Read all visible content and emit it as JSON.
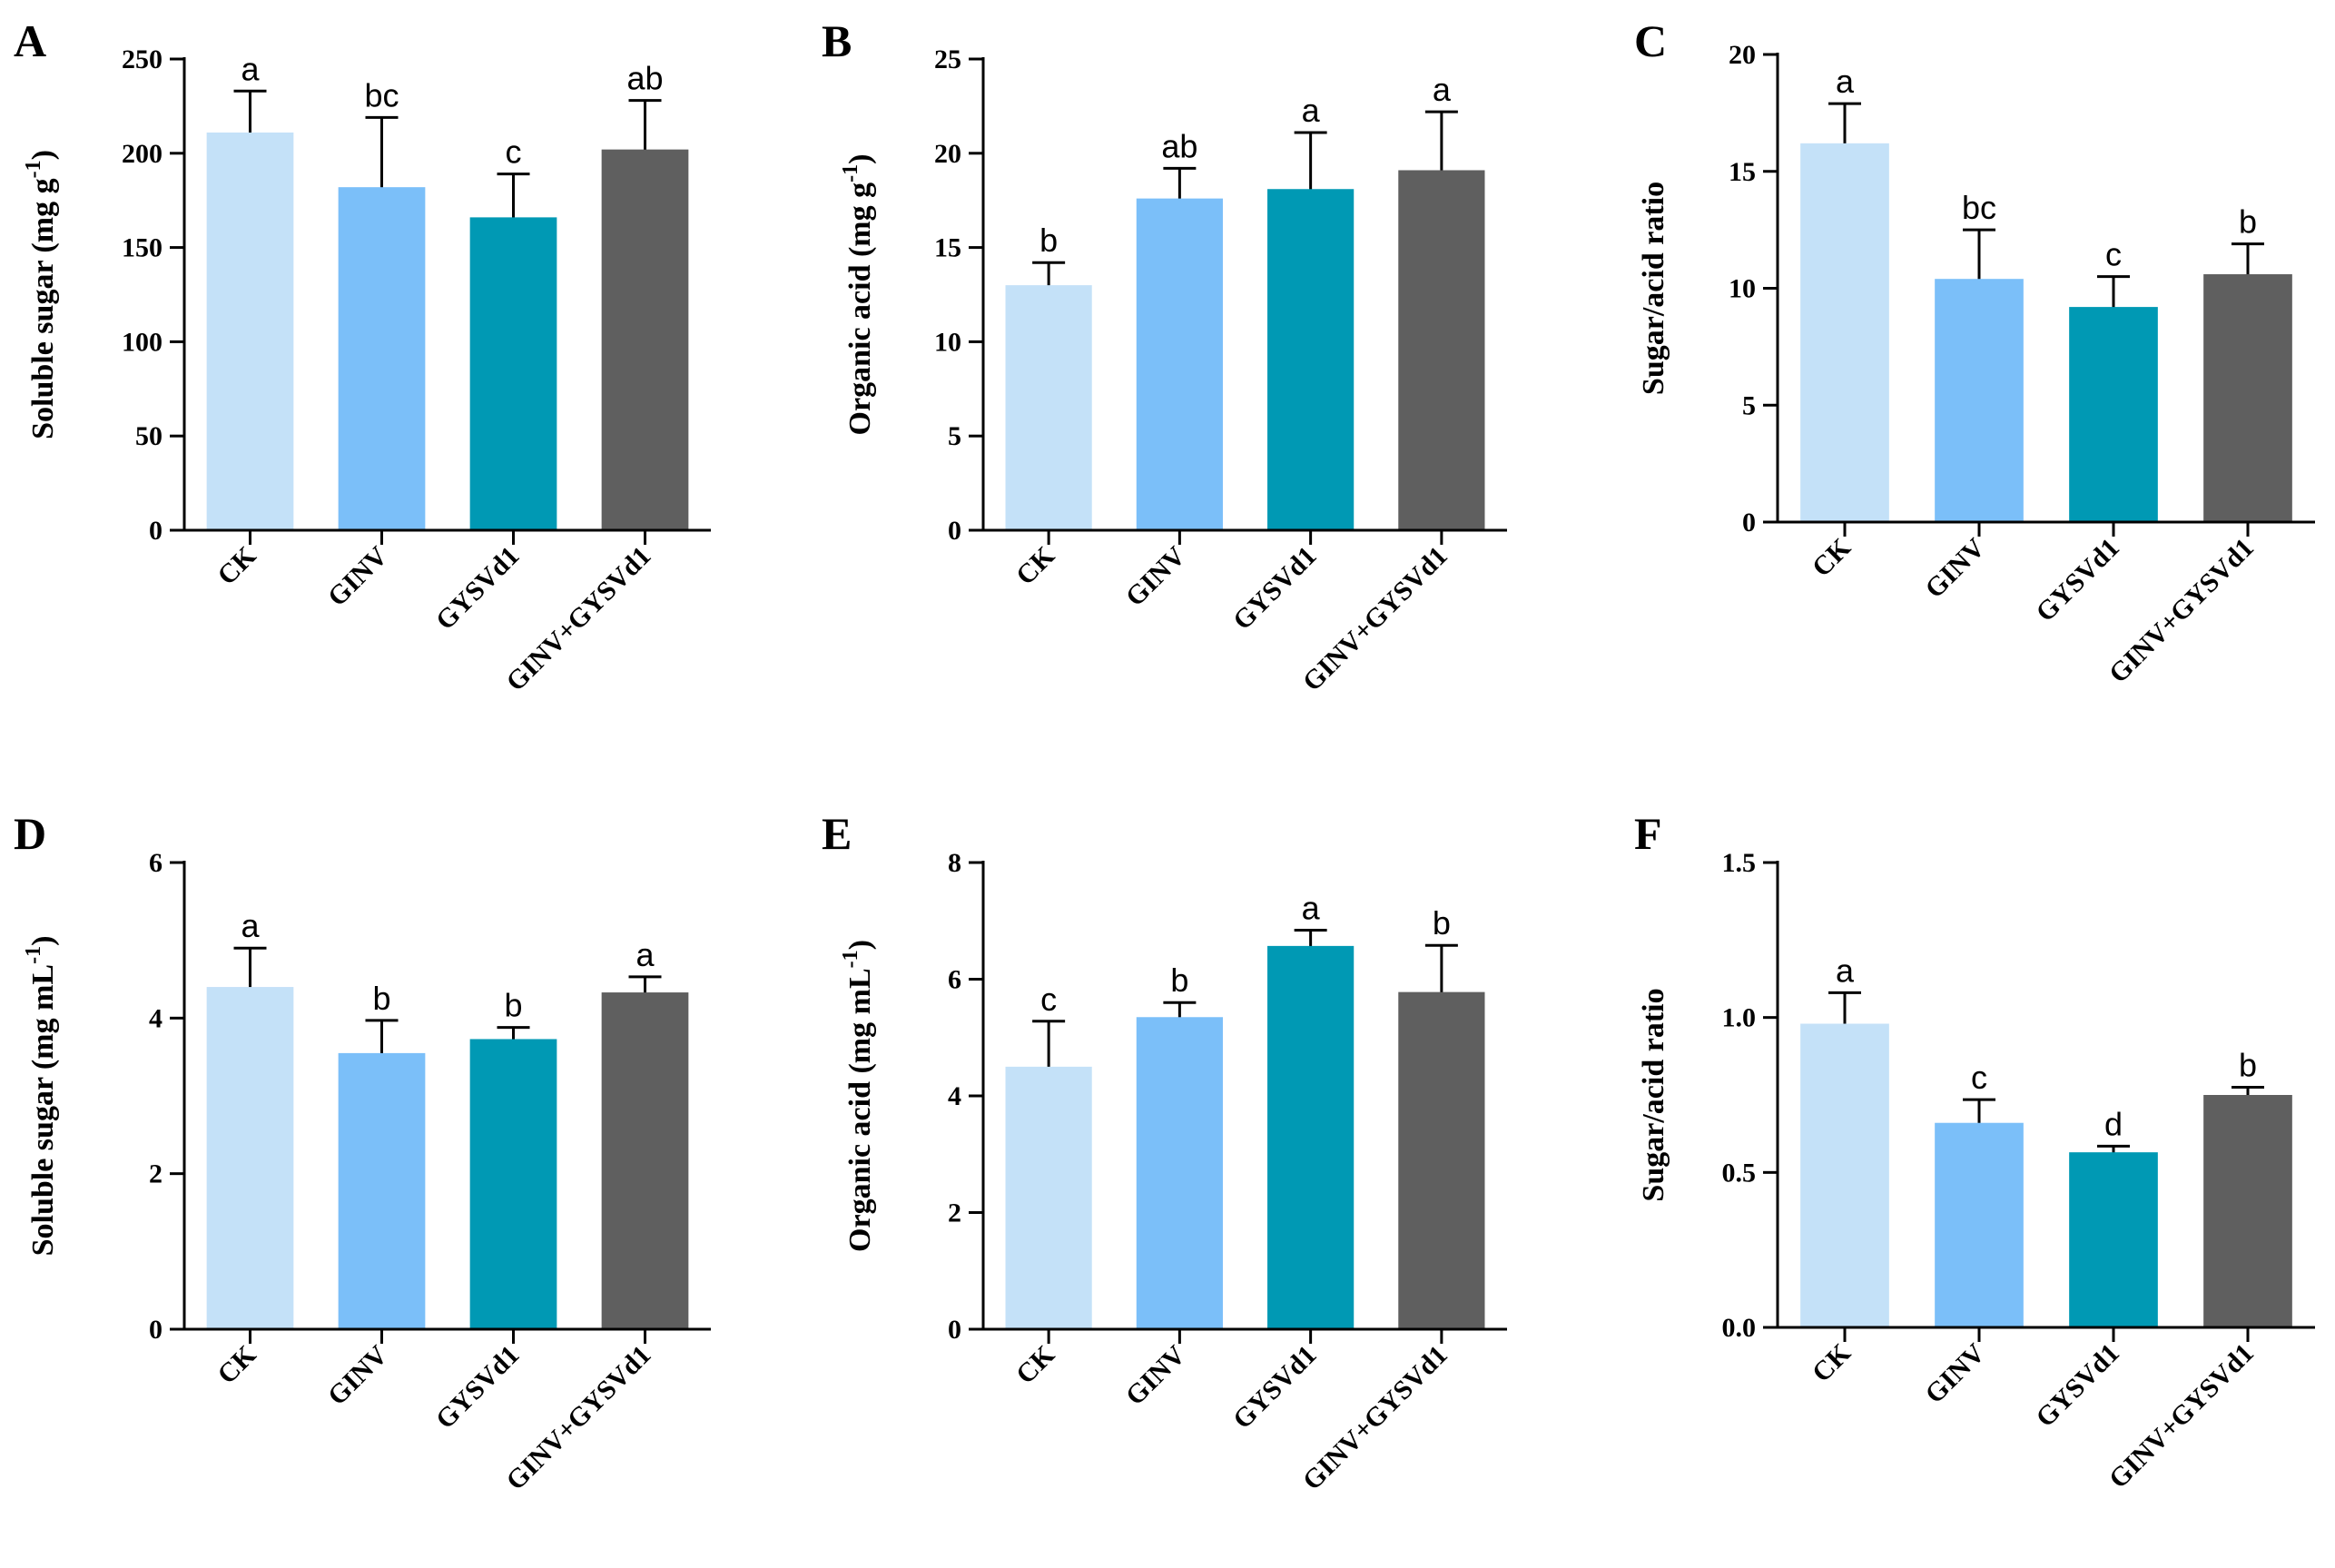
{
  "chart_data": [
    {
      "panel": "A",
      "type": "bar",
      "ylabel": "Soluble sugar (mg g",
      "ylabel_sup": "-1",
      "ylabel_end": ")",
      "categories": [
        "CK",
        "GINV",
        "GYSVd1",
        "GINV+GYSVd1"
      ],
      "values": [
        211,
        182,
        166,
        202
      ],
      "errors": [
        22,
        37,
        23,
        26
      ],
      "significance": [
        "a",
        "bc",
        "c",
        "ab"
      ],
      "ylim": [
        0,
        250
      ],
      "yticks": [
        0,
        50,
        100,
        150,
        200,
        250
      ],
      "ytick_labels": [
        "0",
        "50",
        "100",
        "150",
        "200",
        "250"
      ]
    },
    {
      "panel": "B",
      "type": "bar",
      "ylabel": "Organic acid (mg g",
      "ylabel_sup": "-1",
      "ylabel_end": ")",
      "categories": [
        "CK",
        "GINV",
        "GYSVd1",
        "GINV+GYSVd1"
      ],
      "values": [
        13.0,
        17.6,
        18.1,
        19.1
      ],
      "errors": [
        1.2,
        1.6,
        3.0,
        3.1
      ],
      "significance": [
        "b",
        "ab",
        "a",
        "a"
      ],
      "ylim": [
        0,
        25
      ],
      "yticks": [
        0,
        5,
        10,
        15,
        20,
        25
      ],
      "ytick_labels": [
        "0",
        "5",
        "10",
        "15",
        "20",
        "25"
      ]
    },
    {
      "panel": "C",
      "type": "bar",
      "ylabel": "Sugar/acid ratio",
      "ylabel_sup": "",
      "ylabel_end": "",
      "categories": [
        "CK",
        "GINV",
        "GYSVd1",
        "GINV+GYSVd1"
      ],
      "values": [
        16.2,
        10.4,
        9.2,
        10.6
      ],
      "errors": [
        1.7,
        2.1,
        1.3,
        1.3
      ],
      "significance": [
        "a",
        "bc",
        "c",
        "b"
      ],
      "ylim": [
        0,
        20
      ],
      "yticks": [
        0,
        5,
        10,
        15,
        20
      ],
      "ytick_labels": [
        "0",
        "5",
        "10",
        "15",
        "20"
      ]
    },
    {
      "panel": "D",
      "type": "bar",
      "ylabel": "Soluble sugar (mg mL",
      "ylabel_sup": "-1",
      "ylabel_end": ")",
      "categories": [
        "CK",
        "GINV",
        "GYSVd1",
        "GINV+GYSVd1"
      ],
      "values": [
        4.4,
        3.55,
        3.73,
        4.33
      ],
      "errors": [
        0.5,
        0.42,
        0.15,
        0.2
      ],
      "significance": [
        "a",
        "b",
        "b",
        "a"
      ],
      "ylim": [
        0,
        6
      ],
      "yticks": [
        0,
        2,
        4,
        6
      ],
      "ytick_labels": [
        "0",
        "2",
        "4",
        "6"
      ]
    },
    {
      "panel": "E",
      "type": "bar",
      "ylabel": "Organic acid (mg mL",
      "ylabel_sup": "-1",
      "ylabel_end": ")",
      "categories": [
        "CK",
        "GINV",
        "GYSVd1",
        "GINV+GYSVd1"
      ],
      "values": [
        4.5,
        5.35,
        6.57,
        5.78
      ],
      "errors": [
        0.78,
        0.25,
        0.27,
        0.8
      ],
      "significance": [
        "c",
        "b",
        "a",
        "b"
      ],
      "ylim": [
        0,
        8
      ],
      "yticks": [
        0,
        2,
        4,
        6,
        8
      ],
      "ytick_labels": [
        "0",
        "2",
        "4",
        "6",
        "8"
      ]
    },
    {
      "panel": "F",
      "type": "bar",
      "ylabel": "Sugar/acid ratio",
      "ylabel_sup": "",
      "ylabel_end": "",
      "categories": [
        "CK",
        "GINV",
        "GYSVd1",
        "GINV+GYSVd1"
      ],
      "values": [
        0.98,
        0.66,
        0.565,
        0.75
      ],
      "errors": [
        0.1,
        0.075,
        0.02,
        0.025
      ],
      "significance": [
        "a",
        "c",
        "d",
        "b"
      ],
      "ylim": [
        0,
        1.5
      ],
      "yticks": [
        0,
        0.5,
        1.0,
        1.5
      ],
      "ytick_labels": [
        "0.0",
        "0.5",
        "1.0",
        "1.5"
      ]
    }
  ],
  "colors": {
    "CK": "#c4e1f8",
    "GINV": "#7bbff9",
    "GYSVd1": "#0099b4",
    "GINV+GYSVd1": "#5f5f5f",
    "axis": "#000000"
  }
}
